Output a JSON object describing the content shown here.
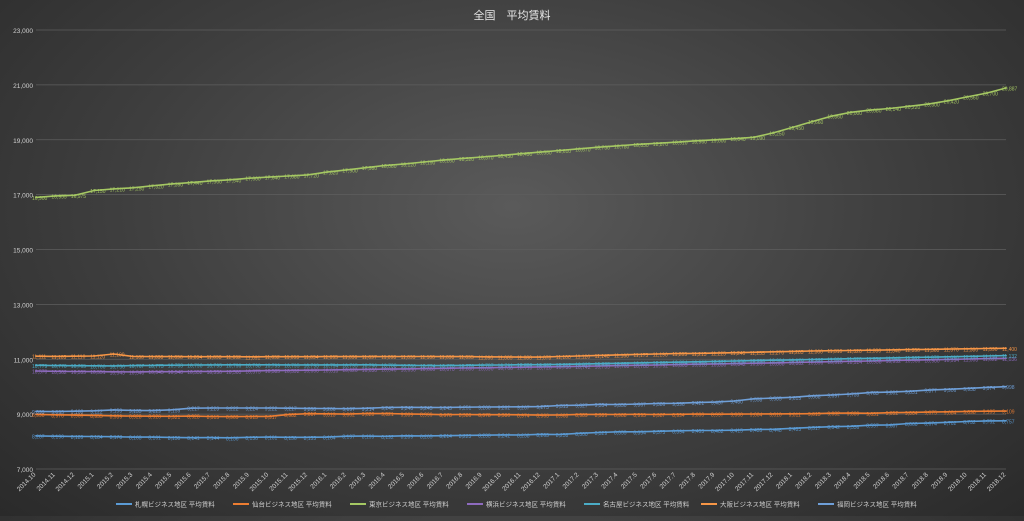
{
  "chart_data": {
    "type": "line",
    "title": "全国　平均賃料",
    "ylim": [
      7000,
      23000
    ],
    "yticks": [
      7000,
      9000,
      11000,
      13000,
      15000,
      17000,
      19000,
      21000,
      23000
    ],
    "ytick_labels": [
      "7,000",
      "9,000",
      "11,000",
      "13,000",
      "15,000",
      "17,000",
      "19,000",
      "21,000",
      "23,000"
    ],
    "grid": true,
    "legend_position": "bottom",
    "categories": [
      "2014.10",
      "2014.11",
      "2014.12",
      "2015.1",
      "2015.2",
      "2015.3",
      "2015.4",
      "2015.5",
      "2015.6",
      "2015.7",
      "2015.8",
      "2015.9",
      "2015.10",
      "2015.11",
      "2015.12",
      "2016.1",
      "2016.2",
      "2016.3",
      "2016.4",
      "2016.5",
      "2016.6",
      "2016.7",
      "2016.8",
      "2016.9",
      "2016.10",
      "2016.11",
      "2016.12",
      "2017.1",
      "2017.2",
      "2017.3",
      "2017.4",
      "2017.5",
      "2017.6",
      "2017.7",
      "2017.8",
      "2017.9",
      "2017.10",
      "2017.11",
      "2017.12",
      "2018.1",
      "2018.2",
      "2018.3",
      "2018.4",
      "2018.5",
      "2018.6",
      "2018.7",
      "2018.8",
      "2018.9",
      "2018.10",
      "2018.11",
      "2018.12"
    ],
    "series": [
      {
        "name": "札幌ビジネス地区  平均賃料",
        "color": "#5b9bd5",
        "values": [
          8207,
          8196,
          8189,
          8184,
          8178,
          8163,
          8161,
          8150,
          8141,
          8144,
          8136,
          8156,
          8161,
          8156,
          8155,
          8164,
          8197,
          8199,
          8192,
          8209,
          8205,
          8214,
          8223,
          8233,
          8242,
          8238,
          8263,
          8258,
          8300,
          8329,
          8355,
          8354,
          8375,
          8394,
          8403,
          8402,
          8415,
          8435,
          8448,
          8483,
          8517,
          8542,
          8556,
          8597,
          8607,
          8660,
          8674,
          8702,
          8732,
          8752,
          8757
        ]
      },
      {
        "name": "仙台ビジネス地区  平均賃料",
        "color": "#ed7d31",
        "values": [
          8990,
          8976,
          8966,
          8955,
          8939,
          8928,
          8926,
          8921,
          8928,
          8915,
          8909,
          8913,
          8917,
          8982,
          9017,
          9013,
          9002,
          9020,
          9021,
          9009,
          8999,
          8978,
          8986,
          8978,
          8980,
          8974,
          8963,
          8968,
          8989,
          8989,
          8988,
          8993,
          8987,
          8994,
          9000,
          8997,
          9000,
          9004,
          9010,
          9011,
          9015,
          9032,
          9039,
          9031,
          9052,
          9064,
          9075,
          9084,
          9098,
          9105,
          9109
        ]
      },
      {
        "name": "東京ビジネス地区  平均賃料",
        "color": "#a5c863",
        "values": [
          16900,
          16955,
          16975,
          17150,
          17210,
          17250,
          17320,
          17390,
          17440,
          17500,
          17540,
          17600,
          17640,
          17680,
          17720,
          17820,
          17900,
          17980,
          18060,
          18120,
          18190,
          18260,
          18320,
          18370,
          18430,
          18490,
          18550,
          18610,
          18670,
          18730,
          18780,
          18830,
          18870,
          18910,
          18960,
          19000,
          19040,
          19090,
          19250,
          19450,
          19660,
          19860,
          20000,
          20080,
          20140,
          20220,
          20300,
          20420,
          20560,
          20700,
          20887
        ]
      },
      {
        "name": "横浜ビジネス地区  平均賃料",
        "color": "#8e6bbf",
        "values": [
          10570,
          10562,
          10555,
          10551,
          10543,
          10540,
          10545,
          10548,
          10552,
          10556,
          10560,
          10575,
          10585,
          10592,
          10600,
          10610,
          10620,
          10630,
          10640,
          10650,
          10660,
          10670,
          10680,
          10690,
          10700,
          10710,
          10720,
          10730,
          10742,
          10755,
          10768,
          10780,
          10792,
          10805,
          10818,
          10830,
          10842,
          10855,
          10868,
          10882,
          10896,
          10910,
          10924,
          10938,
          10952,
          10966,
          10980,
          10994,
          11008,
          11022,
          11036
        ]
      },
      {
        "name": "名古屋ビジネス地区  平均賃料",
        "color": "#4bacc6",
        "values": [
          10779,
          10770,
          10765,
          10760,
          10756,
          10767,
          10775,
          10783,
          10790,
          10795,
          10796,
          10798,
          10799,
          10795,
          10793,
          10794,
          10795,
          10796,
          10788,
          10780,
          10774,
          10770,
          10776,
          10787,
          10791,
          10800,
          10802,
          10812,
          10825,
          10838,
          10852,
          10866,
          10880,
          10894,
          10908,
          10922,
          10936,
          10950,
          10964,
          10978,
          10992,
          11006,
          11020,
          11034,
          11048,
          11062,
          11076,
          11090,
          11104,
          11118,
          11132
        ]
      },
      {
        "name": "大阪ビジネス地区  平均賃料",
        "color": "#f79646",
        "values": [
          11111,
          11105,
          11110,
          11120,
          11190,
          11100,
          11098,
          11096,
          11094,
          11093,
          11092,
          11091,
          11092,
          11093,
          11094,
          11095,
          11096,
          11097,
          11098,
          11099,
          11100,
          11098,
          11095,
          11090,
          11085,
          11080,
          11078,
          11100,
          11120,
          11140,
          11160,
          11175,
          11190,
          11205,
          11215,
          11225,
          11240,
          11255,
          11270,
          11285,
          11300,
          11310,
          11320,
          11330,
          11340,
          11350,
          11360,
          11370,
          11380,
          11390,
          11400
        ]
      },
      {
        "name": "福岡ビジネス地区  平均賃料",
        "color": "#6f9fd8",
        "values": [
          9099,
          9093,
          9108,
          9122,
          9153,
          9135,
          9129,
          9159,
          9217,
          9223,
          9222,
          9224,
          9222,
          9217,
          9208,
          9206,
          9197,
          9214,
          9243,
          9248,
          9245,
          9243,
          9251,
          9260,
          9262,
          9267,
          9273,
          9315,
          9327,
          9354,
          9350,
          9367,
          9386,
          9396,
          9421,
          9437,
          9480,
          9558,
          9585,
          9615,
          9668,
          9697,
          9735,
          9783,
          9802,
          9831,
          9877,
          9906,
          9938,
          9974,
          9998
        ]
      }
    ],
    "labels_shown": {
      "0": [
        8207,
        8196,
        8189,
        8184,
        8178,
        8163,
        8161,
        8150,
        8141,
        8144,
        8136,
        8156,
        8161,
        8156,
        8155,
        8164,
        8197,
        8199,
        8192,
        8209,
        8205,
        8214,
        8223,
        8233,
        8242,
        8238,
        8263,
        8258,
        8300,
        8329,
        8355,
        8354,
        8375,
        8394,
        8403,
        8402,
        8415,
        8435,
        8448,
        8483,
        8517,
        8542,
        8556,
        8597,
        8607,
        8660,
        8674,
        8702,
        8732,
        8752,
        8757
      ],
      "6": [
        9099,
        9093,
        9108,
        9122,
        9153,
        9135,
        9129,
        9159,
        9217,
        9223,
        9222,
        9224,
        9222,
        9217,
        9208,
        9206,
        9197,
        9214,
        9243,
        9248,
        9245,
        9243,
        9251,
        9260,
        9262,
        9267,
        9273,
        9315,
        9327,
        9354,
        9350,
        9367,
        9386,
        9396,
        9421,
        9437,
        9480,
        9558,
        9585,
        9615,
        9668,
        9697,
        9735,
        9783,
        9802,
        9831,
        9877,
        9906,
        9938,
        9974,
        9998
      ]
    }
  }
}
